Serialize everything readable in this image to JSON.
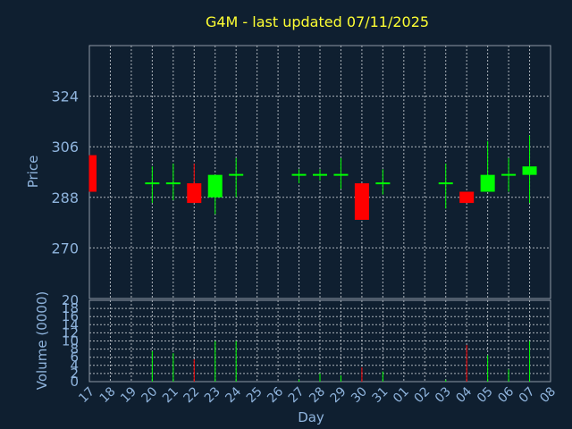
{
  "chart_data": {
    "type": "candlestick",
    "title": "G4M - last updated 07/11/2025",
    "xlabel": "Day",
    "ylabel": "Price",
    "volume_label": "Volume (0000)",
    "grid": true,
    "colors": {
      "background": "#0f1f30",
      "up": "#00ff00",
      "down": "#ff0000",
      "title": "#ffff33",
      "axis_text": "#8fb4dd"
    },
    "price_ylim": [
      252,
      342
    ],
    "price_yticks": [
      270,
      288,
      306,
      324
    ],
    "volume_ylim": [
      0,
      20
    ],
    "volume_yticks": [
      0,
      2,
      4,
      6,
      8,
      10,
      12,
      14,
      16,
      18,
      20
    ],
    "x_ticks": [
      "17",
      "18",
      "19",
      "20",
      "21",
      "22",
      "23",
      "24",
      "25",
      "26",
      "27",
      "28",
      "29",
      "30",
      "31",
      "01",
      "02",
      "03",
      "04",
      "05",
      "06",
      "07",
      "08"
    ],
    "candles": [
      {
        "day": "17",
        "open": 303,
        "high": 303,
        "low": 290,
        "close": 290,
        "volume": 0
      },
      {
        "day": "20",
        "open": 293,
        "high": 299,
        "low": 286,
        "close": 293,
        "volume": 7.5
      },
      {
        "day": "21",
        "open": 293,
        "high": 300,
        "low": 287,
        "close": 293,
        "volume": 7
      },
      {
        "day": "22",
        "open": 293,
        "high": 300,
        "low": 286,
        "close": 286,
        "volume": 5.5
      },
      {
        "day": "23",
        "open": 288,
        "high": 296,
        "low": 282,
        "close": 296,
        "volume": 10
      },
      {
        "day": "24",
        "open": 296,
        "high": 302,
        "low": 288,
        "close": 296,
        "volume": 10
      },
      {
        "day": "27",
        "open": 296,
        "high": 298,
        "low": 293,
        "close": 296,
        "volume": 0.5
      },
      {
        "day": "28",
        "open": 296,
        "high": 298,
        "low": 294,
        "close": 296,
        "volume": 2
      },
      {
        "day": "29",
        "open": 296,
        "high": 302,
        "low": 291,
        "close": 296,
        "volume": 1.5
      },
      {
        "day": "30",
        "open": 293,
        "high": 293,
        "low": 280,
        "close": 280,
        "volume": 3.5
      },
      {
        "day": "31",
        "open": 293,
        "high": 298,
        "low": 289,
        "close": 293,
        "volume": 2.5
      },
      {
        "day": "03",
        "open": 293,
        "high": 300,
        "low": 284,
        "close": 293,
        "volume": 0.5
      },
      {
        "day": "04",
        "open": 290,
        "high": 290,
        "low": 286,
        "close": 286,
        "volume": 9
      },
      {
        "day": "05",
        "open": 290,
        "high": 308,
        "low": 290,
        "close": 296,
        "volume": 6.5
      },
      {
        "day": "06",
        "open": 296,
        "high": 302,
        "low": 290,
        "close": 296,
        "volume": 3
      },
      {
        "day": "07",
        "open": 296,
        "high": 310,
        "low": 286,
        "close": 299,
        "volume": 10
      }
    ]
  }
}
